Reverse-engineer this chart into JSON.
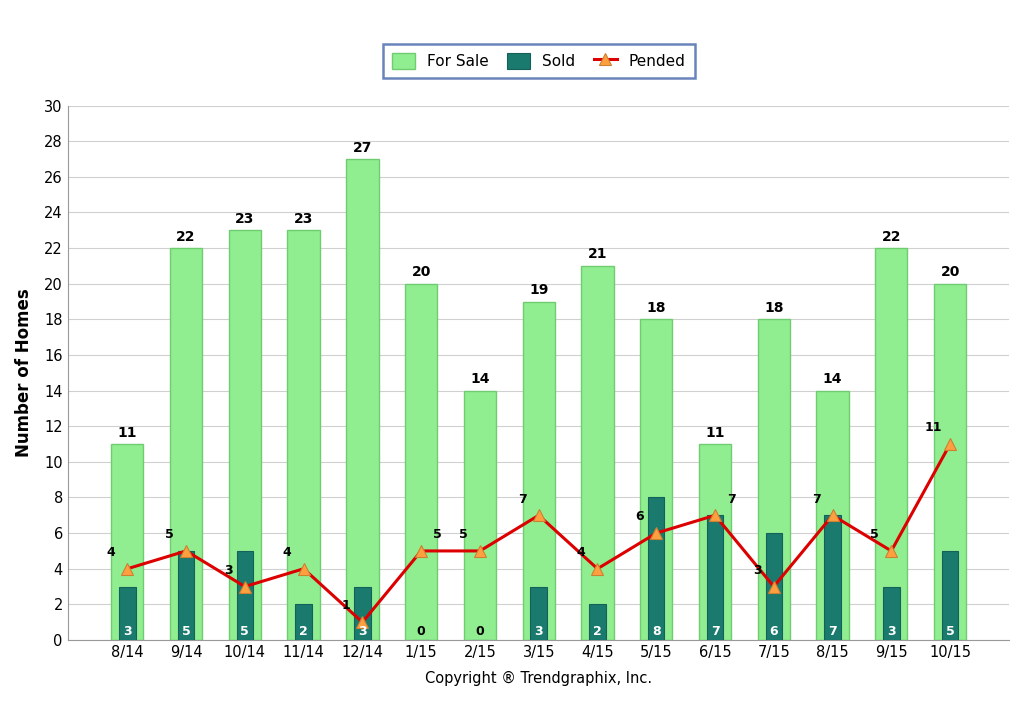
{
  "categories": [
    "8/14",
    "9/14",
    "10/14",
    "11/14",
    "12/14",
    "1/15",
    "2/15",
    "3/15",
    "4/15",
    "5/15",
    "6/15",
    "7/15",
    "8/15",
    "9/15",
    "10/15"
  ],
  "for_sale": [
    11,
    22,
    23,
    23,
    27,
    20,
    14,
    19,
    21,
    18,
    11,
    18,
    14,
    22,
    20
  ],
  "sold": [
    3,
    5,
    5,
    2,
    3,
    0,
    0,
    3,
    2,
    8,
    7,
    6,
    7,
    3,
    5
  ],
  "pended": [
    4,
    5,
    3,
    4,
    1,
    5,
    5,
    7,
    4,
    6,
    7,
    3,
    7,
    5,
    11
  ],
  "for_sale_color": "#90EE90",
  "for_sale_edge_color": "#70CC70",
  "sold_color": "#1a7a6e",
  "sold_edge_color": "#156058",
  "pended_line_color": "#DD0000",
  "pended_marker_facecolor": "#FFA040",
  "pended_marker_edgecolor": "#CC8030",
  "ylabel": "Number of Homes",
  "xlabel": "Copyright ® Trendgraphix, Inc.",
  "ylim": [
    0,
    30
  ],
  "yticks": [
    0,
    2,
    4,
    6,
    8,
    10,
    12,
    14,
    16,
    18,
    20,
    22,
    24,
    26,
    28,
    30
  ],
  "legend_for_sale": "For Sale",
  "legend_sold": "Sold",
  "legend_pended": "Pended",
  "background_color": "#ffffff",
  "plot_background_color": "#ffffff",
  "grid_color": "#d0d0d0",
  "fs_bar_width": 0.55,
  "sold_bar_width": 0.28
}
